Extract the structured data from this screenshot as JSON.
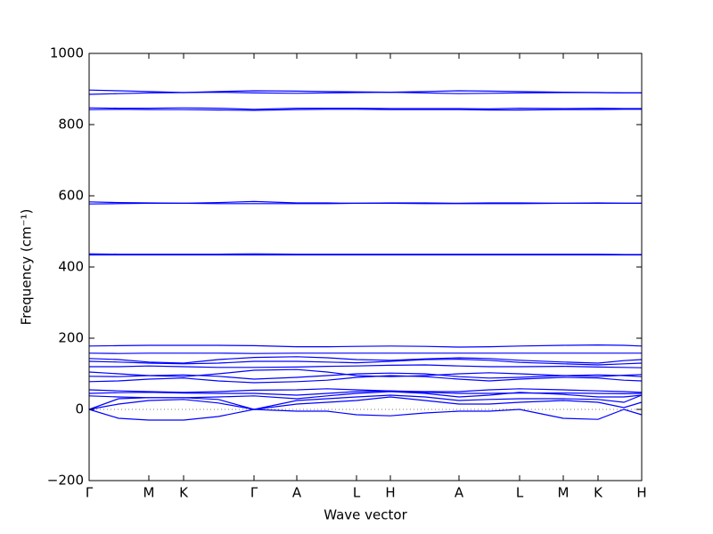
{
  "chart_data": {
    "type": "line",
    "x_label": "Wave vector",
    "y_label": "Frequency (cm⁻¹)",
    "xlim": [
      0,
      620
    ],
    "xticks": [
      {
        "value": 0,
        "label": "Γ"
      },
      {
        "value": 67,
        "label": "M"
      },
      {
        "value": 106,
        "label": "K"
      },
      {
        "value": 185,
        "label": "Γ"
      },
      {
        "value": 233,
        "label": "A"
      },
      {
        "value": 300,
        "label": "L"
      },
      {
        "value": 338,
        "label": "H"
      },
      {
        "value": 415,
        "label": "A"
      },
      {
        "value": 483,
        "label": "L"
      },
      {
        "value": 532,
        "label": "M"
      },
      {
        "value": 571,
        "label": "K"
      },
      {
        "value": 620,
        "label": "H"
      }
    ],
    "ylim": [
      -200,
      1000
    ],
    "yticks": [
      {
        "value": -200,
        "label": "−200"
      },
      0,
      200,
      400,
      600,
      800,
      1000
    ],
    "hlines": [
      0
    ],
    "x": [
      0,
      33,
      67,
      106,
      145,
      185,
      233,
      267,
      300,
      338,
      377,
      415,
      449,
      483,
      532,
      571,
      600,
      620
    ],
    "series": [
      {
        "color": "#0000ff",
        "values": [
          897,
          895,
          893,
          890,
          893,
          895,
          894,
          893,
          892,
          891,
          893,
          895,
          894,
          893,
          891,
          890,
          889,
          889
        ]
      },
      {
        "color": "#0000ff",
        "values": [
          885,
          887,
          889,
          890,
          891,
          889,
          888,
          889,
          890,
          891,
          889,
          887,
          888,
          889,
          890,
          890,
          889,
          889
        ]
      },
      {
        "color": "#0000ff",
        "values": [
          847,
          846,
          846,
          847,
          846,
          843,
          846,
          846,
          846,
          845,
          845,
          845,
          844,
          846,
          845,
          846,
          845,
          845
        ]
      },
      {
        "color": "#0000ff",
        "values": [
          842,
          843,
          842,
          842,
          841,
          840,
          842,
          843,
          843,
          842,
          842,
          842,
          841,
          841,
          842,
          842,
          843,
          843
        ]
      },
      {
        "color": "#0000ff",
        "values": [
          583,
          581,
          580,
          579,
          581,
          584,
          580,
          580,
          579,
          580,
          580,
          579,
          580,
          580,
          579,
          580,
          579,
          579
        ]
      },
      {
        "color": "#0000ff",
        "values": [
          577,
          578,
          579,
          579,
          578,
          578,
          578,
          578,
          579,
          579,
          578,
          578,
          578,
          578,
          579,
          579,
          579,
          579
        ]
      },
      {
        "color": "#0000ff",
        "values": [
          437,
          436,
          436,
          436,
          436,
          437,
          436,
          436,
          436,
          436,
          436,
          436,
          436,
          436,
          436,
          436,
          435,
          435
        ]
      },
      {
        "color": "#0000ff",
        "values": [
          434,
          434,
          434,
          434,
          434,
          434,
          434,
          434,
          434,
          434,
          434,
          434,
          434,
          434,
          434,
          434,
          434,
          434
        ]
      },
      {
        "color": "#0000ff",
        "values": [
          178,
          179,
          180,
          180,
          180,
          179,
          176,
          176,
          177,
          178,
          177,
          175,
          176,
          178,
          180,
          181,
          180,
          178
        ]
      },
      {
        "color": "#0000ff",
        "values": [
          158,
          157,
          158,
          158,
          158,
          157,
          158,
          158,
          158,
          158,
          158,
          158,
          158,
          158,
          158,
          158,
          158,
          158
        ]
      },
      {
        "color": "#0000ff",
        "values": [
          143,
          140,
          133,
          130,
          140,
          146,
          148,
          145,
          140,
          138,
          142,
          145,
          143,
          138,
          133,
          130,
          137,
          140
        ]
      },
      {
        "color": "#0000ff",
        "values": [
          135,
          133,
          130,
          128,
          130,
          135,
          135,
          133,
          131,
          135,
          140,
          141,
          138,
          132,
          128,
          125,
          128,
          130
        ]
      },
      {
        "color": "#0000ff",
        "values": [
          120,
          120,
          122,
          120,
          118,
          118,
          119,
          121,
          122,
          124,
          125,
          122,
          120,
          120,
          121,
          119,
          118,
          117
        ]
      },
      {
        "color": "#0000ff",
        "values": [
          105,
          100,
          95,
          92,
          100,
          110,
          112,
          105,
          95,
          92,
          95,
          100,
          103,
          100,
          95,
          92,
          96,
          98
        ]
      },
      {
        "color": "#0000ff",
        "values": [
          93,
          92,
          95,
          97,
          93,
          85,
          90,
          95,
          100,
          102,
          100,
          92,
          88,
          90,
          95,
          97,
          95,
          92
        ]
      },
      {
        "color": "#0000ff",
        "values": [
          78,
          80,
          85,
          88,
          80,
          75,
          78,
          82,
          90,
          95,
          92,
          85,
          80,
          85,
          90,
          88,
          82,
          80
        ]
      },
      {
        "color": "#0000ff",
        "values": [
          55,
          52,
          50,
          48,
          50,
          54,
          55,
          58,
          55,
          52,
          50,
          50,
          55,
          58,
          55,
          52,
          50,
          48
        ]
      },
      {
        "color": "#0000ff",
        "values": [
          45,
          47,
          48,
          46,
          45,
          45,
          40,
          45,
          50,
          52,
          48,
          45,
          45,
          46,
          46,
          45,
          44,
          45
        ]
      },
      {
        "color": "#0000ff",
        "values": [
          38,
          35,
          33,
          33,
          35,
          38,
          30,
          38,
          45,
          50,
          45,
          35,
          40,
          48,
          42,
          35,
          35,
          40
        ]
      },
      {
        "color": "#0000ff",
        "values": [
          0,
          30,
          33,
          33,
          28,
          0,
          25,
          30,
          35,
          40,
          35,
          25,
          28,
          30,
          30,
          28,
          20,
          40
        ]
      },
      {
        "color": "#0000ff",
        "values": [
          0,
          15,
          25,
          28,
          18,
          0,
          15,
          20,
          25,
          35,
          25,
          15,
          15,
          20,
          25,
          20,
          5,
          20
        ]
      },
      {
        "color": "#0000ff",
        "values": [
          0,
          -25,
          -30,
          -30,
          -20,
          0,
          -5,
          -5,
          -15,
          -18,
          -10,
          -5,
          -5,
          0,
          -25,
          -28,
          0,
          -15
        ]
      }
    ]
  }
}
